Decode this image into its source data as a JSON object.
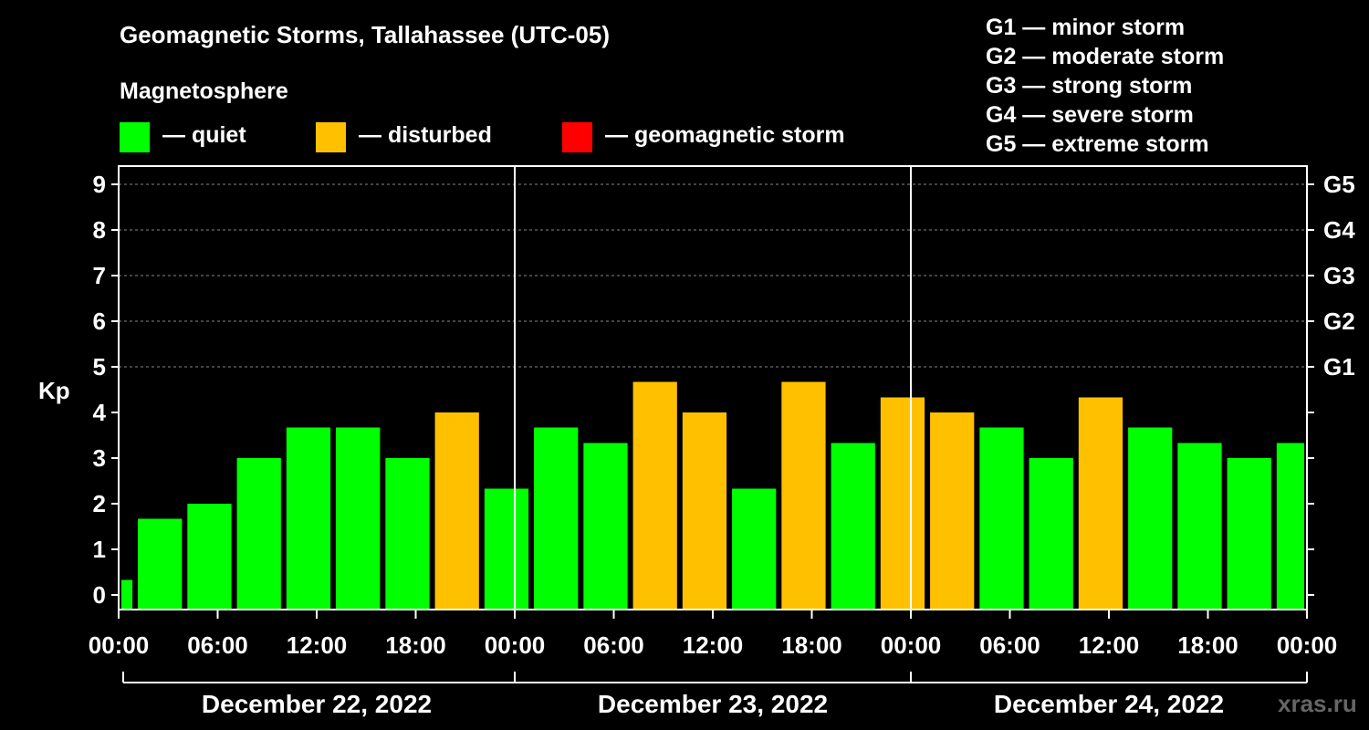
{
  "header": {
    "title": "Geomagnetic Storms, Tallahassee (UTC-05)",
    "subtitle": "Magnetosphere"
  },
  "legend": [
    {
      "label": "— quiet",
      "color": "#00ff00"
    },
    {
      "label": "— disturbed",
      "color": "#ffc000"
    },
    {
      "label": "— geomagnetic storm",
      "color": "#ff0000"
    }
  ],
  "storm_scale": [
    "G1 — minor storm",
    "G2 — moderate storm",
    "G3 — strong storm",
    "G4 — severe storm",
    "G5 — extreme storm"
  ],
  "watermark": "xras.ru",
  "chart_data": {
    "type": "bar",
    "title": "Geomagnetic Storms, Tallahassee (UTC-05)",
    "ylabel": "Kp",
    "ylim": [
      0,
      9
    ],
    "yticks": [
      "0",
      "1",
      "2",
      "3",
      "4",
      "5",
      "6",
      "7",
      "8",
      "9"
    ],
    "right_ticks": [
      {
        "label": "G1",
        "kp": 5
      },
      {
        "label": "G2",
        "kp": 6
      },
      {
        "label": "G3",
        "kp": 7
      },
      {
        "label": "G4",
        "kp": 8
      },
      {
        "label": "G5",
        "kp": 9
      }
    ],
    "x_ticks": [
      "00:00",
      "06:00",
      "12:00",
      "18:00",
      "00:00",
      "06:00",
      "12:00",
      "18:00",
      "00:00",
      "06:00",
      "12:00",
      "18:00",
      "00:00"
    ],
    "dates": [
      "December 22, 2022",
      "December 23, 2022",
      "December 24, 2022"
    ],
    "x_range_hours": [
      0,
      72
    ],
    "bars": [
      {
        "start_h": 0,
        "end_h": 1,
        "kp": 0.33,
        "status": "quiet"
      },
      {
        "start_h": 1,
        "end_h": 4,
        "kp": 1.67,
        "status": "quiet"
      },
      {
        "start_h": 4,
        "end_h": 7,
        "kp": 2.0,
        "status": "quiet"
      },
      {
        "start_h": 7,
        "end_h": 10,
        "kp": 3.0,
        "status": "quiet"
      },
      {
        "start_h": 10,
        "end_h": 13,
        "kp": 3.67,
        "status": "quiet"
      },
      {
        "start_h": 13,
        "end_h": 16,
        "kp": 3.67,
        "status": "quiet"
      },
      {
        "start_h": 16,
        "end_h": 19,
        "kp": 3.0,
        "status": "quiet"
      },
      {
        "start_h": 19,
        "end_h": 22,
        "kp": 4.0,
        "status": "disturbed"
      },
      {
        "start_h": 22,
        "end_h": 25,
        "kp": 2.33,
        "status": "quiet"
      },
      {
        "start_h": 25,
        "end_h": 28,
        "kp": 3.67,
        "status": "quiet"
      },
      {
        "start_h": 28,
        "end_h": 31,
        "kp": 3.33,
        "status": "quiet"
      },
      {
        "start_h": 31,
        "end_h": 34,
        "kp": 4.67,
        "status": "disturbed"
      },
      {
        "start_h": 34,
        "end_h": 37,
        "kp": 4.0,
        "status": "disturbed"
      },
      {
        "start_h": 37,
        "end_h": 40,
        "kp": 2.33,
        "status": "quiet"
      },
      {
        "start_h": 40,
        "end_h": 43,
        "kp": 4.67,
        "status": "disturbed"
      },
      {
        "start_h": 43,
        "end_h": 46,
        "kp": 3.33,
        "status": "quiet"
      },
      {
        "start_h": 46,
        "end_h": 49,
        "kp": 4.33,
        "status": "disturbed"
      },
      {
        "start_h": 49,
        "end_h": 52,
        "kp": 4.0,
        "status": "disturbed"
      },
      {
        "start_h": 52,
        "end_h": 55,
        "kp": 3.67,
        "status": "quiet"
      },
      {
        "start_h": 55,
        "end_h": 58,
        "kp": 3.0,
        "status": "quiet"
      },
      {
        "start_h": 58,
        "end_h": 61,
        "kp": 4.33,
        "status": "disturbed"
      },
      {
        "start_h": 61,
        "end_h": 64,
        "kp": 3.67,
        "status": "quiet"
      },
      {
        "start_h": 64,
        "end_h": 67,
        "kp": 3.33,
        "status": "quiet"
      },
      {
        "start_h": 67,
        "end_h": 70,
        "kp": 3.0,
        "status": "quiet"
      },
      {
        "start_h": 70,
        "end_h": 72,
        "kp": 3.33,
        "status": "quiet"
      }
    ],
    "status_colors": {
      "quiet": "#00ff00",
      "disturbed": "#ffc000",
      "storm": "#ff0000"
    },
    "day_separators_h": [
      24,
      48
    ],
    "grid": true
  }
}
